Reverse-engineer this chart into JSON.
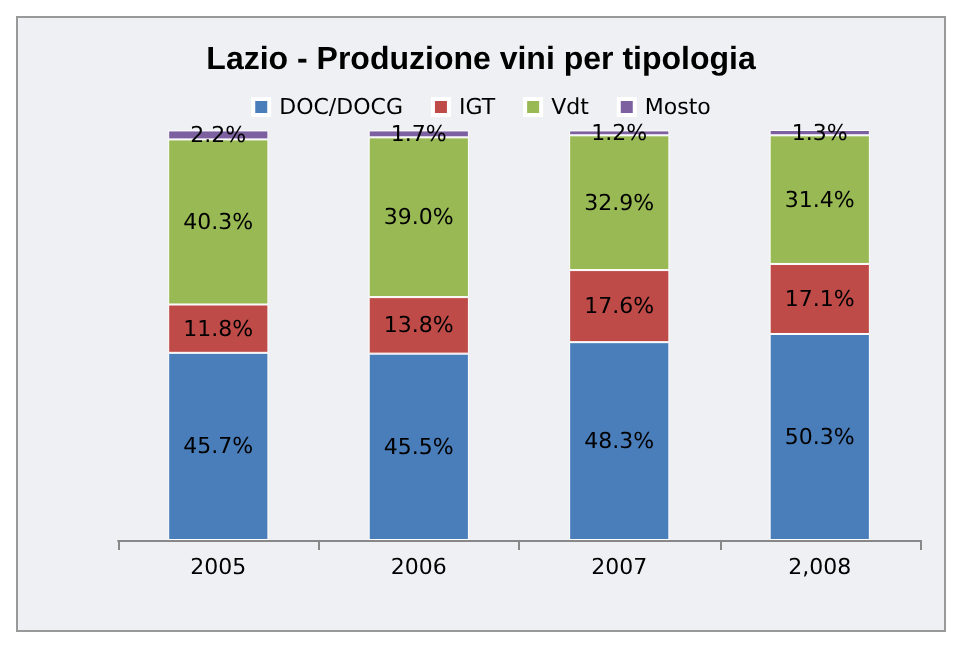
{
  "chart_data": {
    "type": "bar",
    "title": "Lazio - Produzione vini per tipologia",
    "categories": [
      "2005",
      "2006",
      "2007",
      "2,008"
    ],
    "stacked": true,
    "legend": "top",
    "series": [
      {
        "name": "DOC/DOCG",
        "color": "#4a7ebb",
        "values": [
          45.7,
          45.5,
          48.3,
          50.3
        ],
        "value_labels": [
          "45.7%",
          "45.5%",
          "48.3%",
          "50.3%"
        ]
      },
      {
        "name": "IGT",
        "color": "#be4b48",
        "values": [
          11.8,
          13.8,
          17.6,
          17.1
        ],
        "value_labels": [
          "11.8%",
          "13.8%",
          "17.6%",
          "17.1%"
        ]
      },
      {
        "name": "Vdt",
        "color": "#98b954",
        "values": [
          40.3,
          39.0,
          32.9,
          31.4
        ],
        "value_labels": [
          "40.3%",
          "39.0%",
          "32.9%",
          "31.4%"
        ]
      },
      {
        "name": "Mosto",
        "color": "#7d60a0",
        "values": [
          2.2,
          1.7,
          1.2,
          1.3
        ],
        "value_labels": [
          "2.2%",
          "1.7%",
          "1.2%",
          "1.3%"
        ]
      }
    ]
  }
}
